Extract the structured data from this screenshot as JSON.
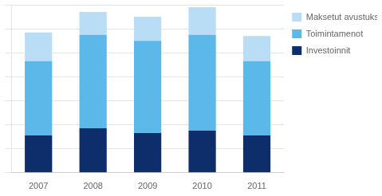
{
  "chart_data": {
    "type": "bar",
    "stacked": true,
    "categories": [
      "2007",
      "2008",
      "2009",
      "2010",
      "2011"
    ],
    "series": [
      {
        "name": "Investoinnit",
        "color": "#0d2d6b",
        "values": [
          155,
          185,
          165,
          175,
          155
        ]
      },
      {
        "name": "Toimintamenot",
        "color": "#5bb8e8",
        "values": [
          310,
          390,
          385,
          400,
          310
        ]
      },
      {
        "name": "Maksetut avustukset",
        "color": "#b8ddf5",
        "values": [
          120,
          95,
          100,
          115,
          105
        ]
      }
    ],
    "ylim": [
      0,
      700
    ],
    "yticks": [
      0,
      100,
      200,
      300,
      400,
      500,
      600,
      700
    ],
    "grid": true,
    "tick_labels": "x",
    "legend": "upper right"
  }
}
